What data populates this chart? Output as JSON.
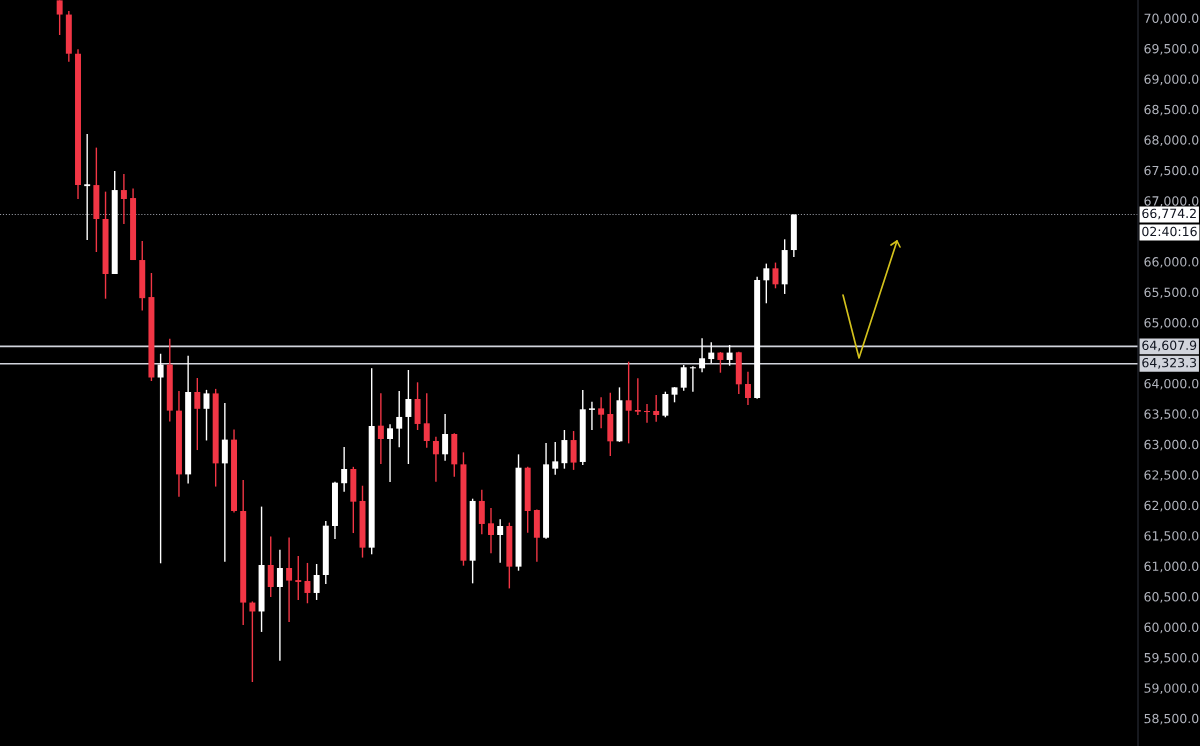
{
  "chart_data": {
    "type": "candlestick",
    "categories": [
      null,
      null,
      null,
      null,
      null,
      null,
      null,
      null,
      null,
      null,
      null,
      null,
      null,
      null,
      null,
      null,
      null,
      null,
      null,
      null,
      null,
      null,
      null,
      null,
      null,
      null,
      null,
      null,
      null,
      null,
      null,
      null,
      null,
      null,
      null,
      null,
      null,
      null,
      null,
      null,
      null,
      null,
      null,
      null,
      null,
      null,
      null,
      null,
      null,
      null,
      null,
      null,
      null,
      null,
      null,
      null,
      null,
      null,
      null,
      null,
      null,
      null,
      null,
      null,
      null,
      null,
      null,
      null,
      null,
      null,
      null,
      null,
      null,
      null,
      null,
      null,
      null,
      null,
      null,
      null,
      null,
      null,
      null,
      null,
      null,
      null,
      null,
      null,
      null,
      null,
      null,
      null,
      null,
      null,
      null,
      null,
      null,
      null,
      null,
      null,
      null,
      null,
      null,
      null,
      null,
      null,
      null,
      null,
      null,
      null,
      null,
      null,
      null,
      null,
      null,
      null,
      null,
      null,
      null,
      null,
      null,
      null,
      null,
      null
    ],
    "ohlc": [
      null,
      null,
      null,
      null,
      null,
      null,
      [
        70290,
        70290,
        69721,
        70057
      ],
      [
        70057,
        70115,
        69283,
        69414
      ],
      [
        69414,
        69486,
        67028,
        67257
      ],
      [
        67240,
        68095,
        66355,
        67270
      ],
      [
        67257,
        67872,
        66158,
        66700
      ],
      [
        66700,
        67149,
        65391,
        65797
      ],
      [
        65797,
        67488,
        65797,
        67175
      ],
      [
        67175,
        67438,
        66618,
        67028
      ],
      [
        67044,
        67200,
        66026,
        66026
      ],
      [
        66026,
        66338,
        65196,
        65400
      ],
      [
        65418,
        65813,
        64040,
        64097
      ],
      [
        64097,
        64487,
        61046,
        64310
      ],
      [
        64310,
        64733,
        63373,
        63553
      ],
      [
        63553,
        63875,
        62137,
        62506
      ],
      [
        62506,
        64454,
        62357,
        63859
      ],
      [
        63859,
        64089,
        62906,
        63583
      ],
      [
        63583,
        63894,
        63063,
        63836
      ],
      [
        63836,
        63910,
        62306,
        62687
      ],
      [
        62687,
        63679,
        61073,
        63077
      ],
      [
        63077,
        63243,
        61880,
        61905
      ],
      [
        61905,
        62414,
        60033,
        60401
      ],
      [
        60401,
        60420,
        59097,
        60255
      ],
      [
        60255,
        61977,
        59919,
        61018
      ],
      [
        61018,
        61485,
        60493,
        60657
      ],
      [
        60657,
        61269,
        59445,
        60969
      ],
      [
        60969,
        61469,
        60082,
        60762
      ],
      [
        60770,
        61166,
        60444,
        60740
      ],
      [
        60755,
        61052,
        60390,
        60559
      ],
      [
        60559,
        61035,
        60444,
        60854
      ],
      [
        60854,
        61741,
        60706,
        61664
      ],
      [
        61659,
        62386,
        61445,
        62370
      ],
      [
        62361,
        62957,
        62222,
        62595
      ],
      [
        62595,
        62630,
        61543,
        62058
      ],
      [
        62070,
        62320,
        61140,
        61303
      ],
      [
        61303,
        64250,
        61194,
        63301
      ],
      [
        63306,
        63838,
        62677,
        63087
      ],
      [
        63087,
        63328,
        62380,
        63263
      ],
      [
        63257,
        63875,
        62951,
        63449
      ],
      [
        63449,
        64220,
        62677,
        63744
      ],
      [
        63744,
        64018,
        63235,
        63334
      ],
      [
        63345,
        63838,
        62945,
        63054
      ],
      [
        63054,
        63125,
        62386,
        62836
      ],
      [
        62836,
        63498,
        62731,
        63169
      ],
      [
        63169,
        63180,
        62468,
        62671
      ],
      [
        62671,
        62868,
        61007,
        61089
      ],
      [
        61089,
        62107,
        60717,
        62070
      ],
      [
        62070,
        62255,
        61522,
        61692
      ],
      [
        61703,
        61955,
        61211,
        61511
      ],
      [
        61511,
        61769,
        61056,
        61659
      ],
      [
        61659,
        61714,
        60634,
        60991
      ],
      [
        60991,
        62835,
        60925,
        62616
      ],
      [
        62616,
        62630,
        61548,
        61905
      ],
      [
        61921,
        61930,
        61073,
        61466
      ],
      [
        61466,
        63021,
        61450,
        62671
      ],
      [
        62600,
        63040,
        62500,
        62720
      ],
      [
        62690,
        63235,
        62600,
        63070
      ],
      [
        63070,
        63218,
        62580,
        62700
      ],
      [
        62710,
        63892,
        62660,
        63575
      ],
      [
        63565,
        63700,
        63235,
        63590
      ],
      [
        63590,
        63772,
        63263,
        63486
      ],
      [
        63498,
        63848,
        62809,
        63049
      ],
      [
        63049,
        63935,
        63040,
        63723
      ],
      [
        63723,
        64357,
        63016,
        63552
      ],
      [
        63563,
        64084,
        63481,
        63536
      ],
      [
        63547,
        63662,
        63355,
        63530
      ],
      [
        63547,
        63810,
        63372,
        63481
      ],
      [
        63470,
        63864,
        63444,
        63826
      ],
      [
        63815,
        63940,
        63690,
        63935
      ],
      [
        63930,
        64303,
        63881,
        64265
      ],
      [
        64248,
        64280,
        63864,
        64265
      ],
      [
        64248,
        64741,
        64183,
        64413
      ],
      [
        64400,
        64675,
        64330,
        64506
      ],
      [
        64506,
        64515,
        64176,
        64385
      ],
      [
        64385,
        64631,
        64291,
        64506
      ],
      [
        64511,
        64520,
        63826,
        63985
      ],
      [
        63990,
        64193,
        63646,
        63760
      ],
      [
        63760,
        65752,
        63750,
        65698
      ],
      [
        65693,
        65967,
        65316,
        65890
      ],
      [
        65890,
        65984,
        65562,
        65627
      ],
      [
        65627,
        66366,
        65469,
        66190
      ],
      [
        66190,
        66774.2,
        66076,
        66774.2
      ],
      null,
      null,
      null,
      null,
      null,
      null,
      null,
      null,
      null,
      null,
      null,
      null,
      null,
      null,
      null,
      null,
      null,
      null,
      null,
      null,
      null,
      null,
      null,
      null,
      null,
      null,
      null,
      null,
      null,
      null,
      null,
      null,
      null,
      null,
      null,
      null,
      null
    ],
    "colors": [
      null,
      null,
      null,
      null,
      null,
      null,
      "#f23645",
      "#f23645",
      "#f23645",
      "#ffffff",
      "#f23645",
      "#f23645",
      "#ffffff",
      "#f23645",
      "#f23645",
      "#f23645",
      "#f23645",
      "#ffffff",
      "#f23645",
      "#f23645",
      "#ffffff",
      "#f23645",
      "#ffffff",
      "#f23645",
      "#ffffff",
      "#f23645",
      "#f23645",
      "#f23645",
      "#ffffff",
      "#f23645",
      "#ffffff",
      "#f23645",
      "#f23645",
      "#f23645",
      "#ffffff",
      "#ffffff",
      "#ffffff",
      "#ffffff",
      "#f23645",
      "#f23645",
      "#ffffff",
      "#f23645",
      "#ffffff",
      "#ffffff",
      "#ffffff",
      "#f23645",
      "#f23645",
      "#f23645",
      "#ffffff",
      "#f23645",
      "#f23645",
      "#ffffff",
      "#f23645",
      "#f23645",
      "#ffffff",
      "#f23645",
      "#ffffff",
      "#f23645",
      "#f23645",
      "#ffffff",
      "#ffffff",
      "#ffffff",
      "#f23645",
      "#ffffff",
      "#ffffff",
      "#f23645",
      "#f23645",
      "#ffffff",
      "#f23645",
      "#f23645",
      "#f23645",
      "#f23645",
      "#ffffff",
      "#ffffff",
      "#ffffff",
      "#ffffff",
      "#ffffff",
      "#ffffff",
      "#f23645",
      "#ffffff",
      "#f23645",
      "#f23645",
      "#ffffff",
      "#ffffff",
      "#f23645",
      "#ffffff",
      "#ffffff",
      null,
      null,
      null,
      null,
      null,
      null,
      null,
      null,
      null,
      null,
      null,
      null,
      null,
      null,
      null,
      null,
      null,
      null,
      null,
      null,
      null,
      null,
      null,
      null,
      null,
      null,
      null,
      null,
      null,
      null,
      null,
      null,
      null,
      null,
      null,
      null,
      null
    ],
    "ylim": [
      58046,
      70296
    ],
    "yticks": [
      {
        "value": 58500,
        "label": "58,500.0"
      },
      {
        "value": 59000,
        "label": "59,000.0"
      },
      {
        "value": 59500,
        "label": "59,500.0"
      },
      {
        "value": 60000,
        "label": "60,000.0"
      },
      {
        "value": 60500,
        "label": "60,500.0"
      },
      {
        "value": 61000,
        "label": "61,000.0"
      },
      {
        "value": 61500,
        "label": "61,500.0"
      },
      {
        "value": 62000,
        "label": "62,000.0"
      },
      {
        "value": 62500,
        "label": "62,500.0"
      },
      {
        "value": 63000,
        "label": "63,000.0"
      },
      {
        "value": 63500,
        "label": "63,500.0"
      },
      {
        "value": 64000,
        "label": "64,000.0"
      },
      {
        "value": 65000,
        "label": "65,000.0"
      },
      {
        "value": 65500,
        "label": "65,500.0"
      },
      {
        "value": 66000,
        "label": "66,000.0"
      },
      {
        "value": 67000,
        "label": "67,000.0"
      },
      {
        "value": 67500,
        "label": "67,500.0"
      },
      {
        "value": 68000,
        "label": "68,000.0"
      },
      {
        "value": 68500,
        "label": "68,500.0"
      },
      {
        "value": 69000,
        "label": "69,000.0"
      },
      {
        "value": 69500,
        "label": "69,500.0"
      },
      {
        "value": 70000,
        "label": "70,000.0"
      }
    ],
    "ref_lines": [
      {
        "axis": "y",
        "value": 64607.9,
        "label": "64,607.9",
        "color": "#d1d4dc",
        "line_style": "solid"
      },
      {
        "axis": "y",
        "value": 64323.3,
        "label": "64,323.3",
        "color": "#d1d4dc",
        "line_style": "solid"
      },
      {
        "axis": "y",
        "value": 66774.2,
        "label": "66,774.2",
        "color": "#9598a1",
        "line_style": "dotted"
      }
    ],
    "annotations": [
      "02:40:16"
    ],
    "tick_labels": "y",
    "grid": false
  }
}
